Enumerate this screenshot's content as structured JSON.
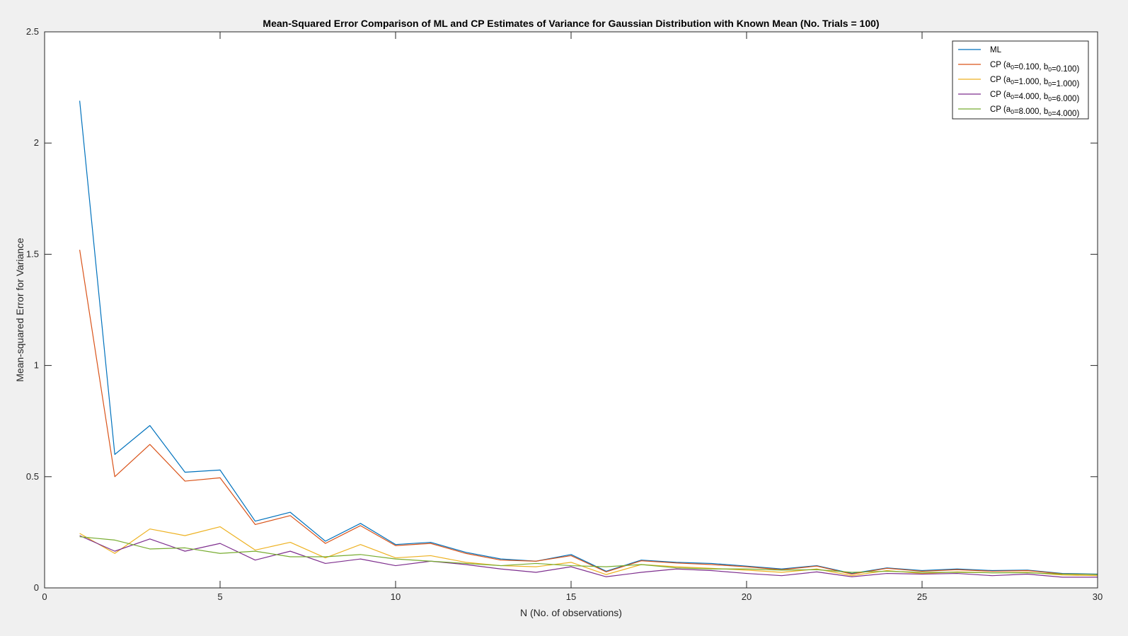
{
  "chart_data": {
    "type": "line",
    "title": "Mean-Squared Error Comparison of ML and CP Estimates of Variance for Gaussian Distribution with Known Mean (No. Trials = 100)",
    "xlabel": "N (No. of observations)",
    "ylabel": "Mean-squared Error for Variance",
    "xlim": [
      0,
      30
    ],
    "ylim": [
      0,
      2.5
    ],
    "xticks": [
      0,
      5,
      10,
      15,
      20,
      25,
      30
    ],
    "yticks": [
      0,
      0.5,
      1,
      1.5,
      2,
      2.5
    ],
    "grid": false,
    "legend_position": "top-right",
    "x": [
      1,
      2,
      3,
      4,
      5,
      6,
      7,
      8,
      9,
      10,
      11,
      12,
      13,
      14,
      15,
      16,
      17,
      18,
      19,
      20,
      21,
      22,
      23,
      24,
      25,
      26,
      27,
      28,
      29,
      30
    ],
    "series": [
      {
        "name": "ML",
        "color": "#0072bd",
        "values": [
          2.19,
          0.6,
          0.73,
          0.52,
          0.53,
          0.3,
          0.34,
          0.21,
          0.29,
          0.195,
          0.205,
          0.16,
          0.13,
          0.12,
          0.15,
          0.075,
          0.125,
          0.115,
          0.11,
          0.098,
          0.085,
          0.1,
          0.065,
          0.09,
          0.078,
          0.085,
          0.078,
          0.08,
          0.065,
          0.062
        ]
      },
      {
        "name": "CP (a0=0.100, b0=0.100)",
        "color": "#d95319",
        "legend_parts": {
          "prefix": "CP (a",
          "a_sub": "0",
          "a_val": "=0.100, b",
          "b_sub": "0",
          "b_val": "=0.100)"
        },
        "values": [
          1.52,
          0.5,
          0.645,
          0.48,
          0.495,
          0.285,
          0.325,
          0.2,
          0.28,
          0.19,
          0.2,
          0.155,
          0.125,
          0.12,
          0.145,
          0.072,
          0.122,
          0.112,
          0.105,
          0.095,
          0.082,
          0.098,
          0.062,
          0.088,
          0.075,
          0.082,
          0.075,
          0.078,
          0.063,
          0.06
        ]
      },
      {
        "name": "CP (a0=1.000, b0=1.000)",
        "color": "#edb120",
        "legend_parts": {
          "prefix": "CP (a",
          "a_sub": "0",
          "a_val": "=1.000, b",
          "b_sub": "0",
          "b_val": "=1.000)"
        },
        "values": [
          0.245,
          0.155,
          0.265,
          0.235,
          0.275,
          0.17,
          0.205,
          0.135,
          0.195,
          0.135,
          0.145,
          0.115,
          0.1,
          0.095,
          0.115,
          0.06,
          0.105,
          0.095,
          0.088,
          0.08,
          0.07,
          0.085,
          0.055,
          0.078,
          0.065,
          0.072,
          0.068,
          0.07,
          0.058,
          0.055
        ]
      },
      {
        "name": "CP (a0=4.000, b0=6.000)",
        "color": "#7e2f8e",
        "legend_parts": {
          "prefix": "CP (a",
          "a_sub": "0",
          "a_val": "=4.000, b",
          "b_sub": "0",
          "b_val": "=6.000)"
        },
        "values": [
          0.235,
          0.165,
          0.22,
          0.165,
          0.2,
          0.125,
          0.165,
          0.11,
          0.13,
          0.1,
          0.12,
          0.105,
          0.085,
          0.07,
          0.095,
          0.05,
          0.07,
          0.085,
          0.078,
          0.065,
          0.055,
          0.072,
          0.05,
          0.065,
          0.062,
          0.065,
          0.055,
          0.062,
          0.048,
          0.048
        ]
      },
      {
        "name": "CP (a0=8.000, b0=4.000)",
        "color": "#77ac30",
        "legend_parts": {
          "prefix": "CP (a",
          "a_sub": "0",
          "a_val": "=8.000, b",
          "b_sub": "0",
          "b_val": "=4.000)"
        },
        "values": [
          0.23,
          0.215,
          0.175,
          0.18,
          0.155,
          0.165,
          0.14,
          0.14,
          0.15,
          0.13,
          0.12,
          0.11,
          0.1,
          0.11,
          0.1,
          0.095,
          0.105,
          0.09,
          0.085,
          0.085,
          0.08,
          0.082,
          0.07,
          0.075,
          0.07,
          0.07,
          0.068,
          0.068,
          0.062,
          0.06
        ]
      }
    ]
  }
}
